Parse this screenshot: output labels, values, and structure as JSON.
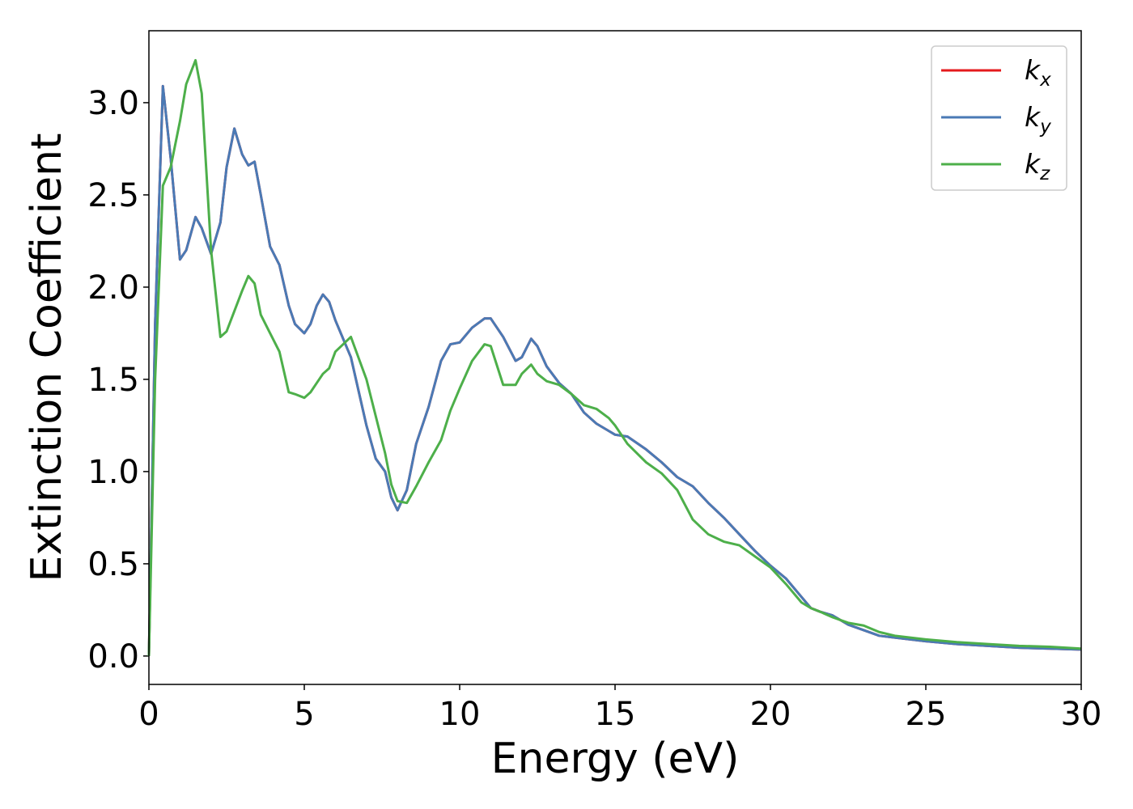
{
  "chart_data": {
    "type": "line",
    "xlabel": "Energy (eV)",
    "ylabel": "Extinction Coefficient",
    "x": [
      0,
      0.2,
      0.45,
      0.7,
      1.0,
      1.2,
      1.5,
      1.7,
      2.0,
      2.3,
      2.5,
      2.75,
      3.0,
      3.2,
      3.4,
      3.6,
      3.9,
      4.2,
      4.5,
      4.7,
      5.0,
      5.2,
      5.4,
      5.6,
      5.8,
      6.0,
      6.5,
      7.0,
      7.3,
      7.6,
      7.8,
      8.0,
      8.3,
      8.6,
      9.0,
      9.4,
      9.7,
      10.0,
      10.4,
      10.8,
      11.0,
      11.4,
      11.8,
      12.0,
      12.3,
      12.5,
      12.8,
      13.2,
      13.6,
      14.0,
      14.4,
      14.8,
      15.0,
      15.4,
      16.0,
      16.5,
      17.0,
      17.5,
      18.0,
      18.5,
      19.0,
      19.5,
      20.0,
      20.5,
      21.0,
      21.3,
      21.6,
      22.0,
      22.5,
      23.0,
      23.5,
      24.0,
      25,
      26,
      27,
      28,
      29,
      30
    ],
    "series": [
      {
        "name": "kx",
        "color": "#e41a1c",
        "values": [
          0,
          1.8,
          3.09,
          2.7,
          2.15,
          2.2,
          2.38,
          2.32,
          2.18,
          2.35,
          2.65,
          2.86,
          2.72,
          2.66,
          2.68,
          2.5,
          2.22,
          2.12,
          1.9,
          1.8,
          1.75,
          1.8,
          1.9,
          1.96,
          1.92,
          1.82,
          1.62,
          1.25,
          1.07,
          1.0,
          0.86,
          0.79,
          0.9,
          1.15,
          1.35,
          1.6,
          1.69,
          1.7,
          1.78,
          1.83,
          1.83,
          1.73,
          1.6,
          1.62,
          1.72,
          1.68,
          1.57,
          1.48,
          1.42,
          1.32,
          1.26,
          1.22,
          1.2,
          1.19,
          1.12,
          1.05,
          0.97,
          0.92,
          0.83,
          0.75,
          0.66,
          0.57,
          0.49,
          0.42,
          0.32,
          0.26,
          0.24,
          0.22,
          0.17,
          0.14,
          0.11,
          0.1,
          0.08,
          0.065,
          0.055,
          0.045,
          0.04,
          0.035
        ]
      },
      {
        "name": "ky",
        "color": "#4a7ab5",
        "values": [
          0,
          1.8,
          3.09,
          2.7,
          2.15,
          2.2,
          2.38,
          2.32,
          2.18,
          2.35,
          2.65,
          2.86,
          2.72,
          2.66,
          2.68,
          2.5,
          2.22,
          2.12,
          1.9,
          1.8,
          1.75,
          1.8,
          1.9,
          1.96,
          1.92,
          1.82,
          1.62,
          1.25,
          1.07,
          1.0,
          0.86,
          0.79,
          0.9,
          1.15,
          1.35,
          1.6,
          1.69,
          1.7,
          1.78,
          1.83,
          1.83,
          1.73,
          1.6,
          1.62,
          1.72,
          1.68,
          1.57,
          1.48,
          1.42,
          1.32,
          1.26,
          1.22,
          1.2,
          1.19,
          1.12,
          1.05,
          0.97,
          0.92,
          0.83,
          0.75,
          0.66,
          0.57,
          0.49,
          0.42,
          0.32,
          0.26,
          0.24,
          0.22,
          0.17,
          0.14,
          0.11,
          0.1,
          0.08,
          0.065,
          0.055,
          0.045,
          0.04,
          0.035
        ]
      },
      {
        "name": "kz",
        "color": "#4daf4a",
        "values": [
          0,
          1.5,
          2.55,
          2.65,
          2.9,
          3.1,
          3.23,
          3.05,
          2.2,
          1.73,
          1.76,
          1.87,
          1.98,
          2.06,
          2.02,
          1.85,
          1.75,
          1.65,
          1.43,
          1.42,
          1.4,
          1.43,
          1.48,
          1.53,
          1.56,
          1.65,
          1.73,
          1.5,
          1.3,
          1.1,
          0.93,
          0.84,
          0.83,
          0.92,
          1.05,
          1.17,
          1.33,
          1.45,
          1.6,
          1.69,
          1.68,
          1.47,
          1.47,
          1.53,
          1.58,
          1.53,
          1.49,
          1.47,
          1.42,
          1.36,
          1.34,
          1.29,
          1.25,
          1.15,
          1.05,
          0.99,
          0.9,
          0.74,
          0.66,
          0.62,
          0.6,
          0.54,
          0.48,
          0.39,
          0.29,
          0.26,
          0.24,
          0.21,
          0.18,
          0.165,
          0.13,
          0.11,
          0.09,
          0.075,
          0.065,
          0.055,
          0.05,
          0.04
        ]
      }
    ],
    "xlim": [
      0,
      30
    ],
    "xticks": [
      0,
      5,
      10,
      15,
      20,
      25,
      30
    ],
    "ylim": [
      -0.154,
      3.39
    ],
    "yticks": [
      {
        "value": 0,
        "label": "0.0"
      },
      0.5,
      {
        "value": 1,
        "label": "1.0"
      },
      1.5,
      {
        "value": 2,
        "label": "2.0"
      },
      2.5,
      {
        "value": 3,
        "label": "3.0"
      }
    ],
    "grid": false,
    "legend": "upper right"
  }
}
